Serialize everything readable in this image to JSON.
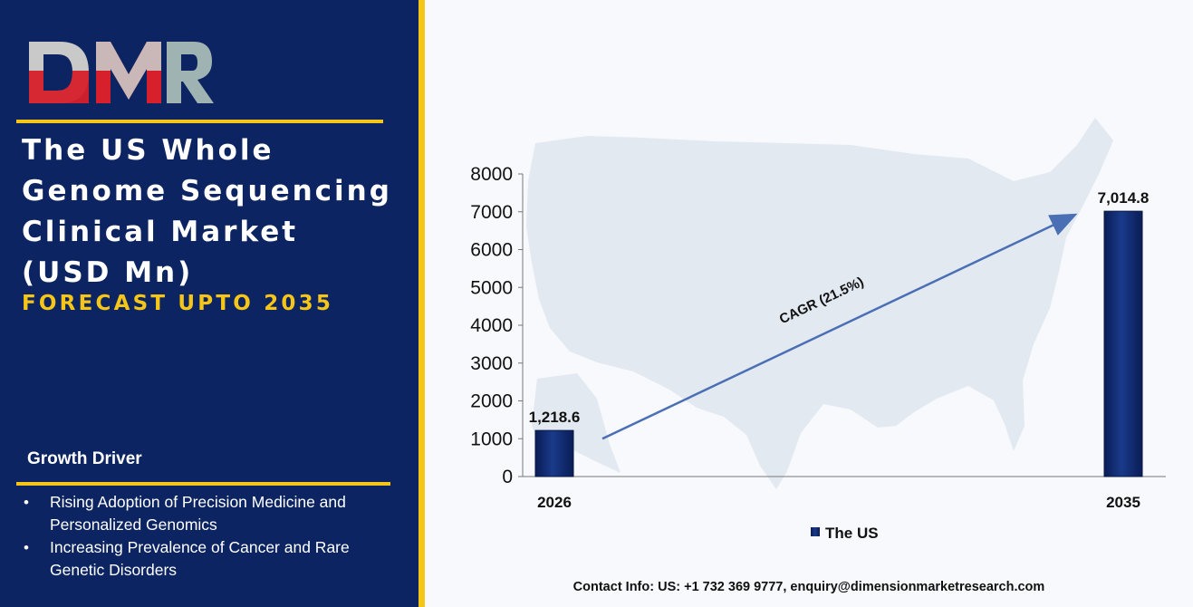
{
  "brand": {
    "logo_text": "DMR",
    "primary_color": "#0c2461",
    "accent_color": "#f5c518"
  },
  "title_lines": [
    "The US Whole",
    "Genome Sequencing",
    "Clinical Market",
    "(USD Mn)"
  ],
  "subtitle": "FORECAST UPTO 2035",
  "growth_driver": {
    "heading": "Growth Driver",
    "items": [
      "Rising Adoption of Precision Medicine and Personalized Genomics",
      "Increasing Prevalence of Cancer and Rare Genetic Disorders"
    ]
  },
  "contact": "Contact Info: US: +1 732 369 9777, enquiry@dimensionmarketresearch.com",
  "chart_data": {
    "type": "bar",
    "categories": [
      "2026",
      "2035"
    ],
    "series": [
      {
        "name": "The US",
        "values": [
          1218.6,
          7014.8
        ],
        "color": "#0c2461"
      }
    ],
    "data_labels": [
      "1,218.6",
      "7,014.8"
    ],
    "yticks": [
      0,
      1000,
      2000,
      3000,
      4000,
      5000,
      6000,
      7000,
      8000
    ],
    "ylim": [
      0,
      8000
    ],
    "annotation": "CAGR (21.5%)",
    "legend_position": "bottom-center",
    "grid": false,
    "background": "US map silhouette"
  }
}
